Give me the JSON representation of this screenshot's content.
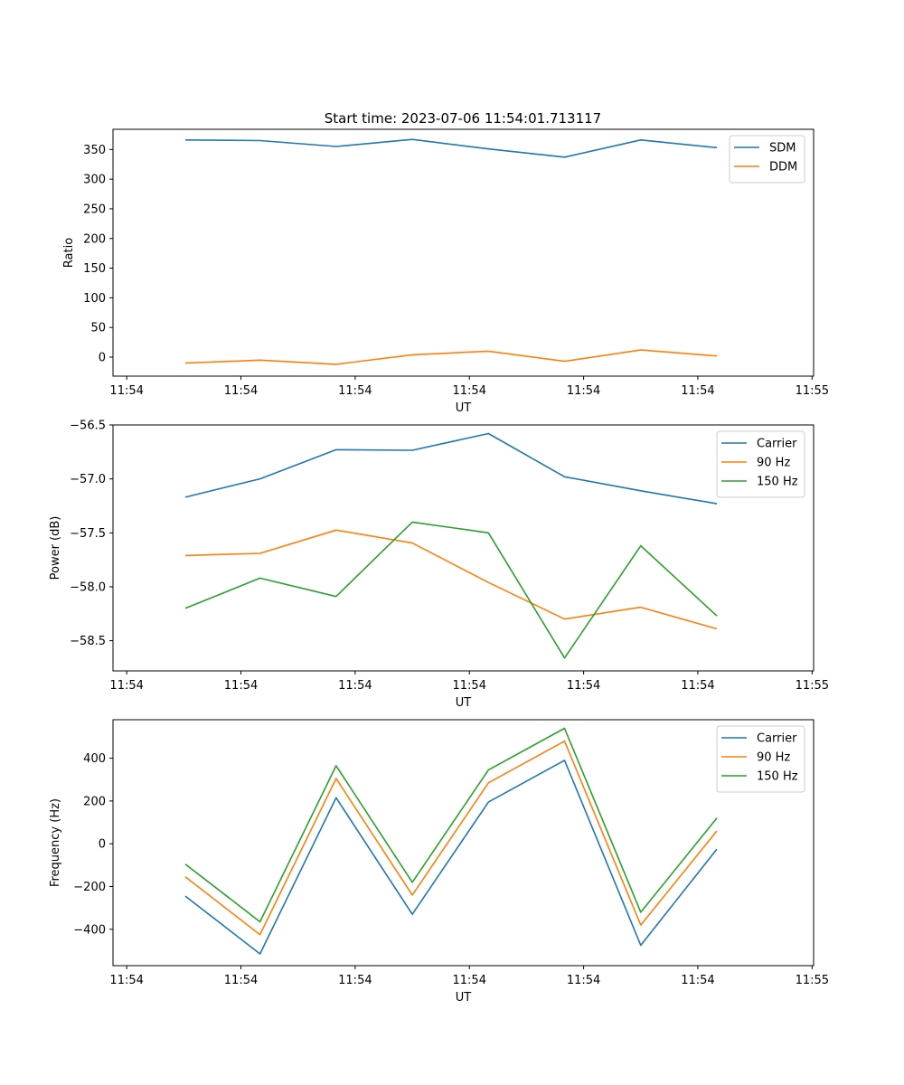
{
  "title": "Start time: 2023-07-06 11:54:01.713117",
  "chart_data": [
    {
      "type": "line",
      "title": "Start time: 2023-07-06 11:54:01.713117",
      "xlabel": "UT",
      "ylabel": "Ratio",
      "xlim": [
        1.5,
        10.7
      ],
      "ylim": [
        -32,
        384
      ],
      "xticks": [
        1.68,
        3.18,
        4.68,
        6.18,
        7.68,
        9.18,
        10.68
      ],
      "xtick_labels": [
        "11:54",
        "11:54",
        "11:54",
        "11:54",
        "11:54",
        "11:54",
        "11:55"
      ],
      "yticks": [
        0,
        50,
        100,
        150,
        200,
        250,
        300,
        350
      ],
      "ytick_labels": [
        "0",
        "50",
        "100",
        "150",
        "200",
        "250",
        "300",
        "350"
      ],
      "legend": "upper-right",
      "x": [
        2.45,
        3.43,
        4.43,
        5.43,
        6.43,
        7.43,
        8.43,
        9.43
      ],
      "series": [
        {
          "name": "SDM",
          "color": "#1f77b4",
          "values": [
            366,
            365,
            355,
            367,
            351,
            337,
            366,
            353
          ]
        },
        {
          "name": "DDM",
          "color": "#ff7f0e",
          "values": [
            -10,
            -5,
            -12,
            4,
            10,
            -7,
            12,
            2
          ]
        }
      ]
    },
    {
      "type": "line",
      "xlabel": "UT",
      "ylabel": "Power (dB)",
      "xlim": [
        1.5,
        10.7
      ],
      "ylim": [
        -58.78,
        -56.5
      ],
      "xticks": [
        1.68,
        3.18,
        4.68,
        6.18,
        7.68,
        9.18,
        10.68
      ],
      "xtick_labels": [
        "11:54",
        "11:54",
        "11:54",
        "11:54",
        "11:54",
        "11:54",
        "11:55"
      ],
      "yticks": [
        -58.5,
        -58.0,
        -57.5,
        -57.0,
        -56.5
      ],
      "ytick_labels": [
        "−58.5",
        "−58.0",
        "−57.5",
        "−57.0",
        "−56.5"
      ],
      "legend": "upper-right",
      "x": [
        2.45,
        3.43,
        4.43,
        5.43,
        6.43,
        7.43,
        8.43,
        9.43
      ],
      "series": [
        {
          "name": "Carrier",
          "color": "#1f77b4",
          "values": [
            -57.17,
            -57.0,
            -56.73,
            -56.735,
            -56.58,
            -56.98,
            -57.11,
            -57.23
          ]
        },
        {
          "name": "90 Hz",
          "color": "#ff7f0e",
          "values": [
            -57.71,
            -57.69,
            -57.475,
            -57.595,
            -57.96,
            -58.3,
            -58.19,
            -58.39
          ]
        },
        {
          "name": "150 Hz",
          "color": "#2ca02c",
          "values": [
            -58.2,
            -57.92,
            -58.09,
            -57.4,
            -57.5,
            -58.66,
            -57.62,
            -58.27
          ]
        }
      ]
    },
    {
      "type": "line",
      "xlabel": "UT",
      "ylabel": "Frequency (Hz)",
      "xlim": [
        1.5,
        10.7
      ],
      "ylim": [
        -570,
        580
      ],
      "xticks": [
        1.68,
        3.18,
        4.68,
        6.18,
        7.68,
        9.18,
        10.68
      ],
      "xtick_labels": [
        "11:54",
        "11:54",
        "11:54",
        "11:54",
        "11:54",
        "11:54",
        "11:55"
      ],
      "yticks": [
        -400,
        -200,
        0,
        200,
        400
      ],
      "ytick_labels": [
        "−400",
        "−200",
        "0",
        "200",
        "400"
      ],
      "legend": "upper-right",
      "x": [
        2.45,
        3.43,
        4.43,
        5.43,
        6.43,
        7.43,
        8.43,
        9.43
      ],
      "series": [
        {
          "name": "Carrier",
          "color": "#1f77b4",
          "values": [
            -245,
            -515,
            215,
            -330,
            195,
            390,
            -475,
            -25
          ]
        },
        {
          "name": "90 Hz",
          "color": "#ff7f0e",
          "values": [
            -155,
            -425,
            305,
            -240,
            285,
            480,
            -380,
            60
          ]
        },
        {
          "name": "150 Hz",
          "color": "#2ca02c",
          "values": [
            -95,
            -365,
            365,
            -180,
            345,
            540,
            -320,
            120
          ]
        }
      ]
    }
  ]
}
